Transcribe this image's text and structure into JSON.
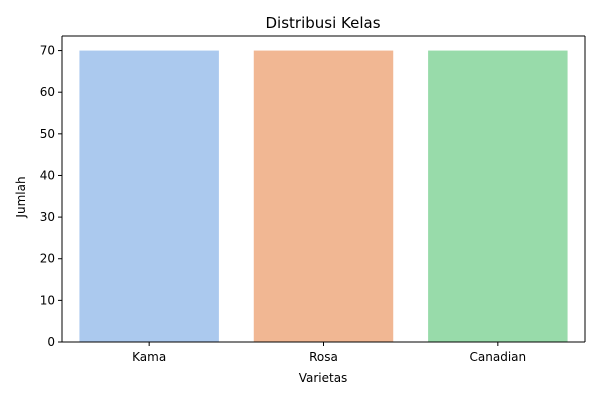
{
  "chart_data": {
    "type": "bar",
    "title": "Distribusi Kelas",
    "xlabel": "Varietas",
    "ylabel": "Jumlah",
    "categories": [
      "Kama",
      "Rosa",
      "Canadian"
    ],
    "values": [
      70,
      70,
      70
    ],
    "colors": [
      "#abc9ee",
      "#f1b793",
      "#98dbaa"
    ],
    "ylim": [
      0,
      73.5
    ],
    "yticks": [
      0,
      10,
      20,
      30,
      40,
      50,
      60,
      70
    ],
    "grid": false,
    "legend": "none"
  }
}
